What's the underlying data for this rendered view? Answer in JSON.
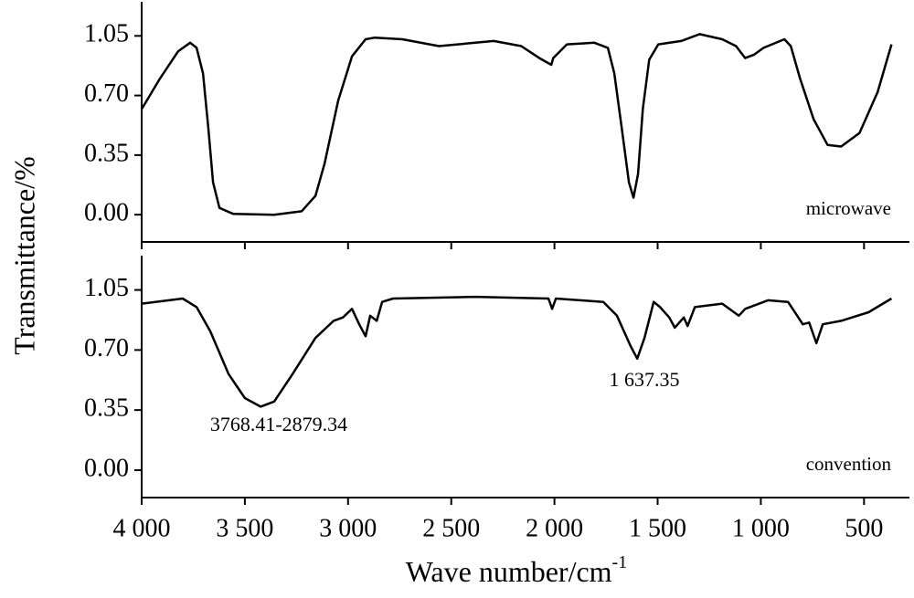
{
  "chart_data": [
    {
      "type": "line",
      "y_label": "Transmittance/%",
      "xlim": [
        4000,
        280
      ],
      "ylim": [
        -0.16,
        1.25
      ],
      "xticks": [
        4000,
        3500,
        3000,
        2500,
        2000,
        1500,
        1000,
        500
      ],
      "yticks": [
        1.05,
        {
          "value": 0.7,
          "label": "0.70"
        },
        0.35,
        {
          "value": 0,
          "label": "0.00"
        }
      ],
      "x": [
        4000,
        3911,
        3823,
        3765,
        3734,
        3703,
        3677,
        3654,
        3623,
        3557,
        3358,
        3225,
        3158,
        3114,
        3048,
        2981,
        2915,
        2870,
        2737,
        2560,
        2383,
        2294,
        2161,
        2073,
        2015,
        2006,
        1940,
        1807,
        1741,
        1710,
        1674,
        1639,
        1617,
        1595,
        1572,
        1541,
        1497,
        1386,
        1297,
        1187,
        1120,
        1076,
        1032,
        987,
        886,
        855,
        810,
        744,
        677,
        611,
        522,
        434,
        367
      ],
      "series": [
        {
          "name": "microwave",
          "color": "#000000",
          "values": [
            0.62,
            0.8,
            0.96,
            1.01,
            0.98,
            0.83,
            0.51,
            0.19,
            0.04,
            0.005,
            0.0,
            0.02,
            0.11,
            0.3,
            0.67,
            0.93,
            1.03,
            1.04,
            1.03,
            0.99,
            1.01,
            1.02,
            0.99,
            0.92,
            0.88,
            0.92,
            1.0,
            1.01,
            0.98,
            0.83,
            0.51,
            0.19,
            0.1,
            0.24,
            0.62,
            0.91,
            1.0,
            1.02,
            1.06,
            1.03,
            0.99,
            0.92,
            0.94,
            0.98,
            1.03,
            0.99,
            0.8,
            0.56,
            0.41,
            0.4,
            0.48,
            0.72,
            1.0
          ]
        }
      ]
    },
    {
      "type": "line",
      "x_label": "Wave number/cm",
      "x_label_sup": "-1",
      "xlim": [
        4000,
        280
      ],
      "ylim": [
        -0.16,
        1.25
      ],
      "xticks": [
        {
          "value": 4000,
          "label": "4 000"
        },
        {
          "value": 3500,
          "label": "3 500"
        },
        {
          "value": 3000,
          "label": "3 000"
        },
        {
          "value": 2500,
          "label": "2 500"
        },
        {
          "value": 2000,
          "label": "2 000"
        },
        {
          "value": 1500,
          "label": "1 500"
        },
        {
          "value": 1000,
          "label": "1 000"
        },
        500
      ],
      "yticks": [
        1.05,
        {
          "value": 0.7,
          "label": "0.70"
        },
        0.35,
        {
          "value": 0,
          "label": "0.00"
        }
      ],
      "annotations": [
        "3768.41-2879.34",
        "1 637.35"
      ],
      "x": [
        4000,
        3801,
        3734,
        3668,
        3579,
        3500,
        3424,
        3358,
        3269,
        3158,
        3070,
        3025,
        2981,
        2946,
        2915,
        2893,
        2861,
        2835,
        2782,
        2383,
        2029,
        2011,
        1993,
        1763,
        1697,
        1630,
        1599,
        1564,
        1519,
        1488,
        1444,
        1417,
        1373,
        1355,
        1320,
        1187,
        1107,
        1076,
        965,
        868,
        824,
        797,
        766,
        731,
        700,
        611,
        478,
        367
      ],
      "series": [
        {
          "name": "convention",
          "color": "#000000",
          "values": [
            0.97,
            1.0,
            0.95,
            0.81,
            0.56,
            0.42,
            0.37,
            0.4,
            0.56,
            0.77,
            0.87,
            0.89,
            0.94,
            0.85,
            0.78,
            0.9,
            0.87,
            0.98,
            1.0,
            1.01,
            1.0,
            0.94,
            1.0,
            0.98,
            0.9,
            0.72,
            0.65,
            0.77,
            0.98,
            0.95,
            0.89,
            0.83,
            0.89,
            0.84,
            0.95,
            0.97,
            0.9,
            0.94,
            0.99,
            0.98,
            0.9,
            0.85,
            0.86,
            0.74,
            0.85,
            0.87,
            0.92,
            1.0
          ]
        }
      ]
    }
  ]
}
